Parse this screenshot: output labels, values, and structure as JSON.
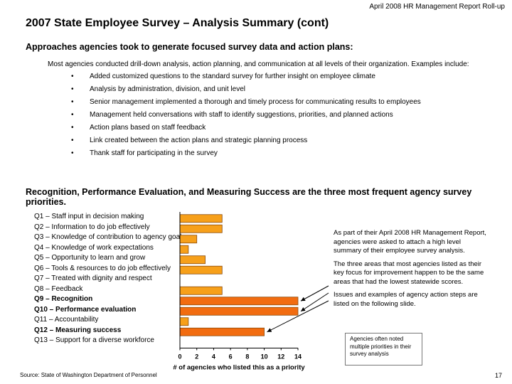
{
  "header": {
    "report": "April 2008 HR Management Report Roll-up"
  },
  "title": "2007 State Employee Survey – Analysis Summary (cont)",
  "approaches": {
    "heading": "Approaches agencies took to generate focused survey data and action plans:",
    "intro": "Most agencies conducted drill-down analysis, action planning, and communication at all levels of their organization. Examples include:",
    "bullet_char": "•",
    "bullets": [
      "Added customized questions to the standard survey for further insight on employee climate",
      "Analysis by administration, division, and unit level",
      "Senior management implemented a thorough and timely process for communicating results to employees",
      "Management held conversations with staff to identify suggestions, priorities, and planned actions",
      "Action plans based on staff feedback",
      "Link created between the action plans and strategic planning process",
      "Thank staff for participating in the survey"
    ]
  },
  "priorities": {
    "heading": "Recognition, Performance Evaluation, and Measuring Success are the three most frequent agency survey priorities."
  },
  "chart_data": {
    "type": "bar",
    "orientation": "horizontal",
    "categories": [
      "Q1 – Staff input in decision making",
      "Q2 – Information to do job effectively",
      "Q3 – Knowledge of contribution to agency goals",
      "Q4 – Knowledge of work expectations",
      "Q5 – Opportunity to learn and grow",
      "Q6 – Tools & resources to do job effectively",
      "Q7 – Treated with dignity and respect",
      "Q8 – Feedback",
      "Q9 – Recognition",
      "Q10 – Performance evaluation",
      "Q11 – Accountability",
      "Q12 – Measuring success",
      "Q13 – Support for a diverse workforce"
    ],
    "values": [
      5,
      5,
      2,
      1,
      3,
      5,
      0,
      5,
      14,
      14,
      1,
      10,
      0
    ],
    "bold_categories": [
      8,
      9,
      11
    ],
    "xlabel": "# of agencies who listed this as a priority",
    "xlim": [
      0,
      14
    ],
    "xticks": [
      "0",
      "2",
      "4",
      "6",
      "8",
      "10",
      "12",
      "14"
    ],
    "colors": {
      "bar": "#F7A01A",
      "bar_highlight": "#F26C10",
      "bar_edge": "#8A4A0A",
      "axis": "#000000"
    },
    "arrows_to": [
      8,
      9,
      11
    ]
  },
  "notes": [
    "As part of their April 2008 HR Management Report, agencies were asked to attach a high level summary of their employee survey analysis.",
    "The three areas that most agencies listed as their key focus for improvement happen to be the same areas that had the lowest statewide scores.",
    "Issues and examples of agency action steps are listed on the following slide."
  ],
  "callout": "Agencies often noted multiple priorities in their survey analysis",
  "footer": {
    "source": "Source:  State of Washington Department of Personnel",
    "page": "17"
  }
}
